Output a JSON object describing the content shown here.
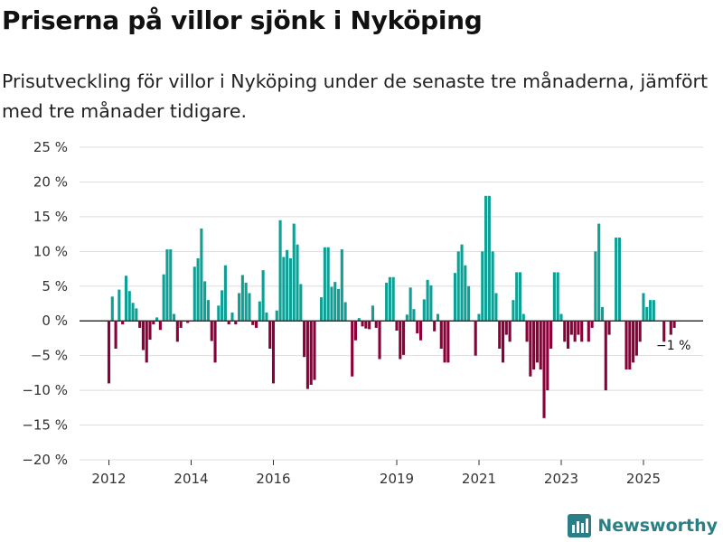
{
  "header": {
    "title": "Priserna på villor sjönk i Nyköping",
    "subtitle": "Prisutveckling för villor i Nyköping under de senaste tre månaderna, jämfört med tre månader tidigare."
  },
  "brand": {
    "name": "Newsworthy"
  },
  "colors": {
    "positive": "#0f9f95",
    "negative": "#8b0039",
    "grid": "#dddddd",
    "zero_line": "#333333",
    "brand": "#2a7f86"
  },
  "chart_data": {
    "type": "bar",
    "title": "Priserna på villor sjönk i Nyköping",
    "xlabel": "",
    "ylabel": "",
    "ylim": [
      -20,
      25
    ],
    "y_ticks": [
      25,
      20,
      15,
      10,
      5,
      0,
      -5,
      -10,
      -15,
      -20
    ],
    "y_tick_labels": [
      "25 %",
      "20 %",
      "15 %",
      "10 %",
      "5 %",
      "0 %",
      "−5 %",
      "−10 %",
      "−15 %",
      "−20 %"
    ],
    "x_tick_labels": [
      {
        "label": "2012",
        "year": 2012.0
      },
      {
        "label": "2014",
        "year": 2014.0
      },
      {
        "label": "2016",
        "year": 2016.0
      },
      {
        "label": "2019",
        "year": 2019.0
      },
      {
        "label": "2021",
        "year": 2021.0
      },
      {
        "label": "2023",
        "year": 2023.0
      },
      {
        "label": "2025",
        "year": 2025.0
      }
    ],
    "start_year": 2012.0,
    "step_years": 0.08333,
    "values": [
      -9,
      3.5,
      -4,
      4.5,
      -0.5,
      6.5,
      4.3,
      2.6,
      1.8,
      -1,
      -4.2,
      -6,
      -2.7,
      -0.5,
      0.5,
      -1.3,
      6.7,
      10.3,
      10.3,
      1,
      -3,
      -1,
      0,
      -0.3,
      0,
      7.8,
      9,
      13.3,
      5.7,
      3,
      -2.9,
      -6,
      2.2,
      4.4,
      8,
      -0.5,
      1.2,
      -0.5,
      4,
      6.6,
      5.5,
      4,
      -0.6,
      -1,
      2.8,
      7.3,
      1.2,
      -4,
      -9,
      1.5,
      14.5,
      9.2,
      10.2,
      9,
      14,
      11,
      5.3,
      -5.2,
      -9.8,
      -9.2,
      -8.5,
      0,
      3.4,
      10.6,
      10.6,
      4.9,
      5.6,
      4.6,
      10.3,
      2.7,
      0,
      -8,
      -2.8,
      0.4,
      -0.8,
      -1.1,
      -1.2,
      2.2,
      -1,
      -5.5,
      0,
      5.5,
      6.3,
      6.3,
      -1.4,
      -5.5,
      -4.9,
      0.9,
      4.8,
      1.7,
      -1.8,
      -2.8,
      3.1,
      5.9,
      5.1,
      -1.5,
      1,
      -4,
      -6,
      -6,
      0,
      6.9,
      10,
      11,
      8,
      5,
      0,
      -5,
      1,
      10,
      18,
      18,
      10,
      4,
      -4,
      -6,
      -2,
      -3,
      3,
      7,
      7,
      1,
      -3,
      -8,
      -7,
      -6,
      -7,
      -14,
      -10,
      -4,
      7,
      7,
      1,
      -3,
      -4,
      -2,
      -3,
      -2,
      -3,
      0,
      -3,
      -1,
      10,
      14,
      2,
      -10,
      -2,
      0,
      12,
      12,
      0,
      -7,
      -7,
      -6,
      -5,
      -3,
      4,
      2,
      3,
      3,
      0,
      0,
      -3,
      0,
      -2,
      -1
    ],
    "annotations": [
      {
        "label": "−1 %",
        "value": -1
      }
    ]
  }
}
